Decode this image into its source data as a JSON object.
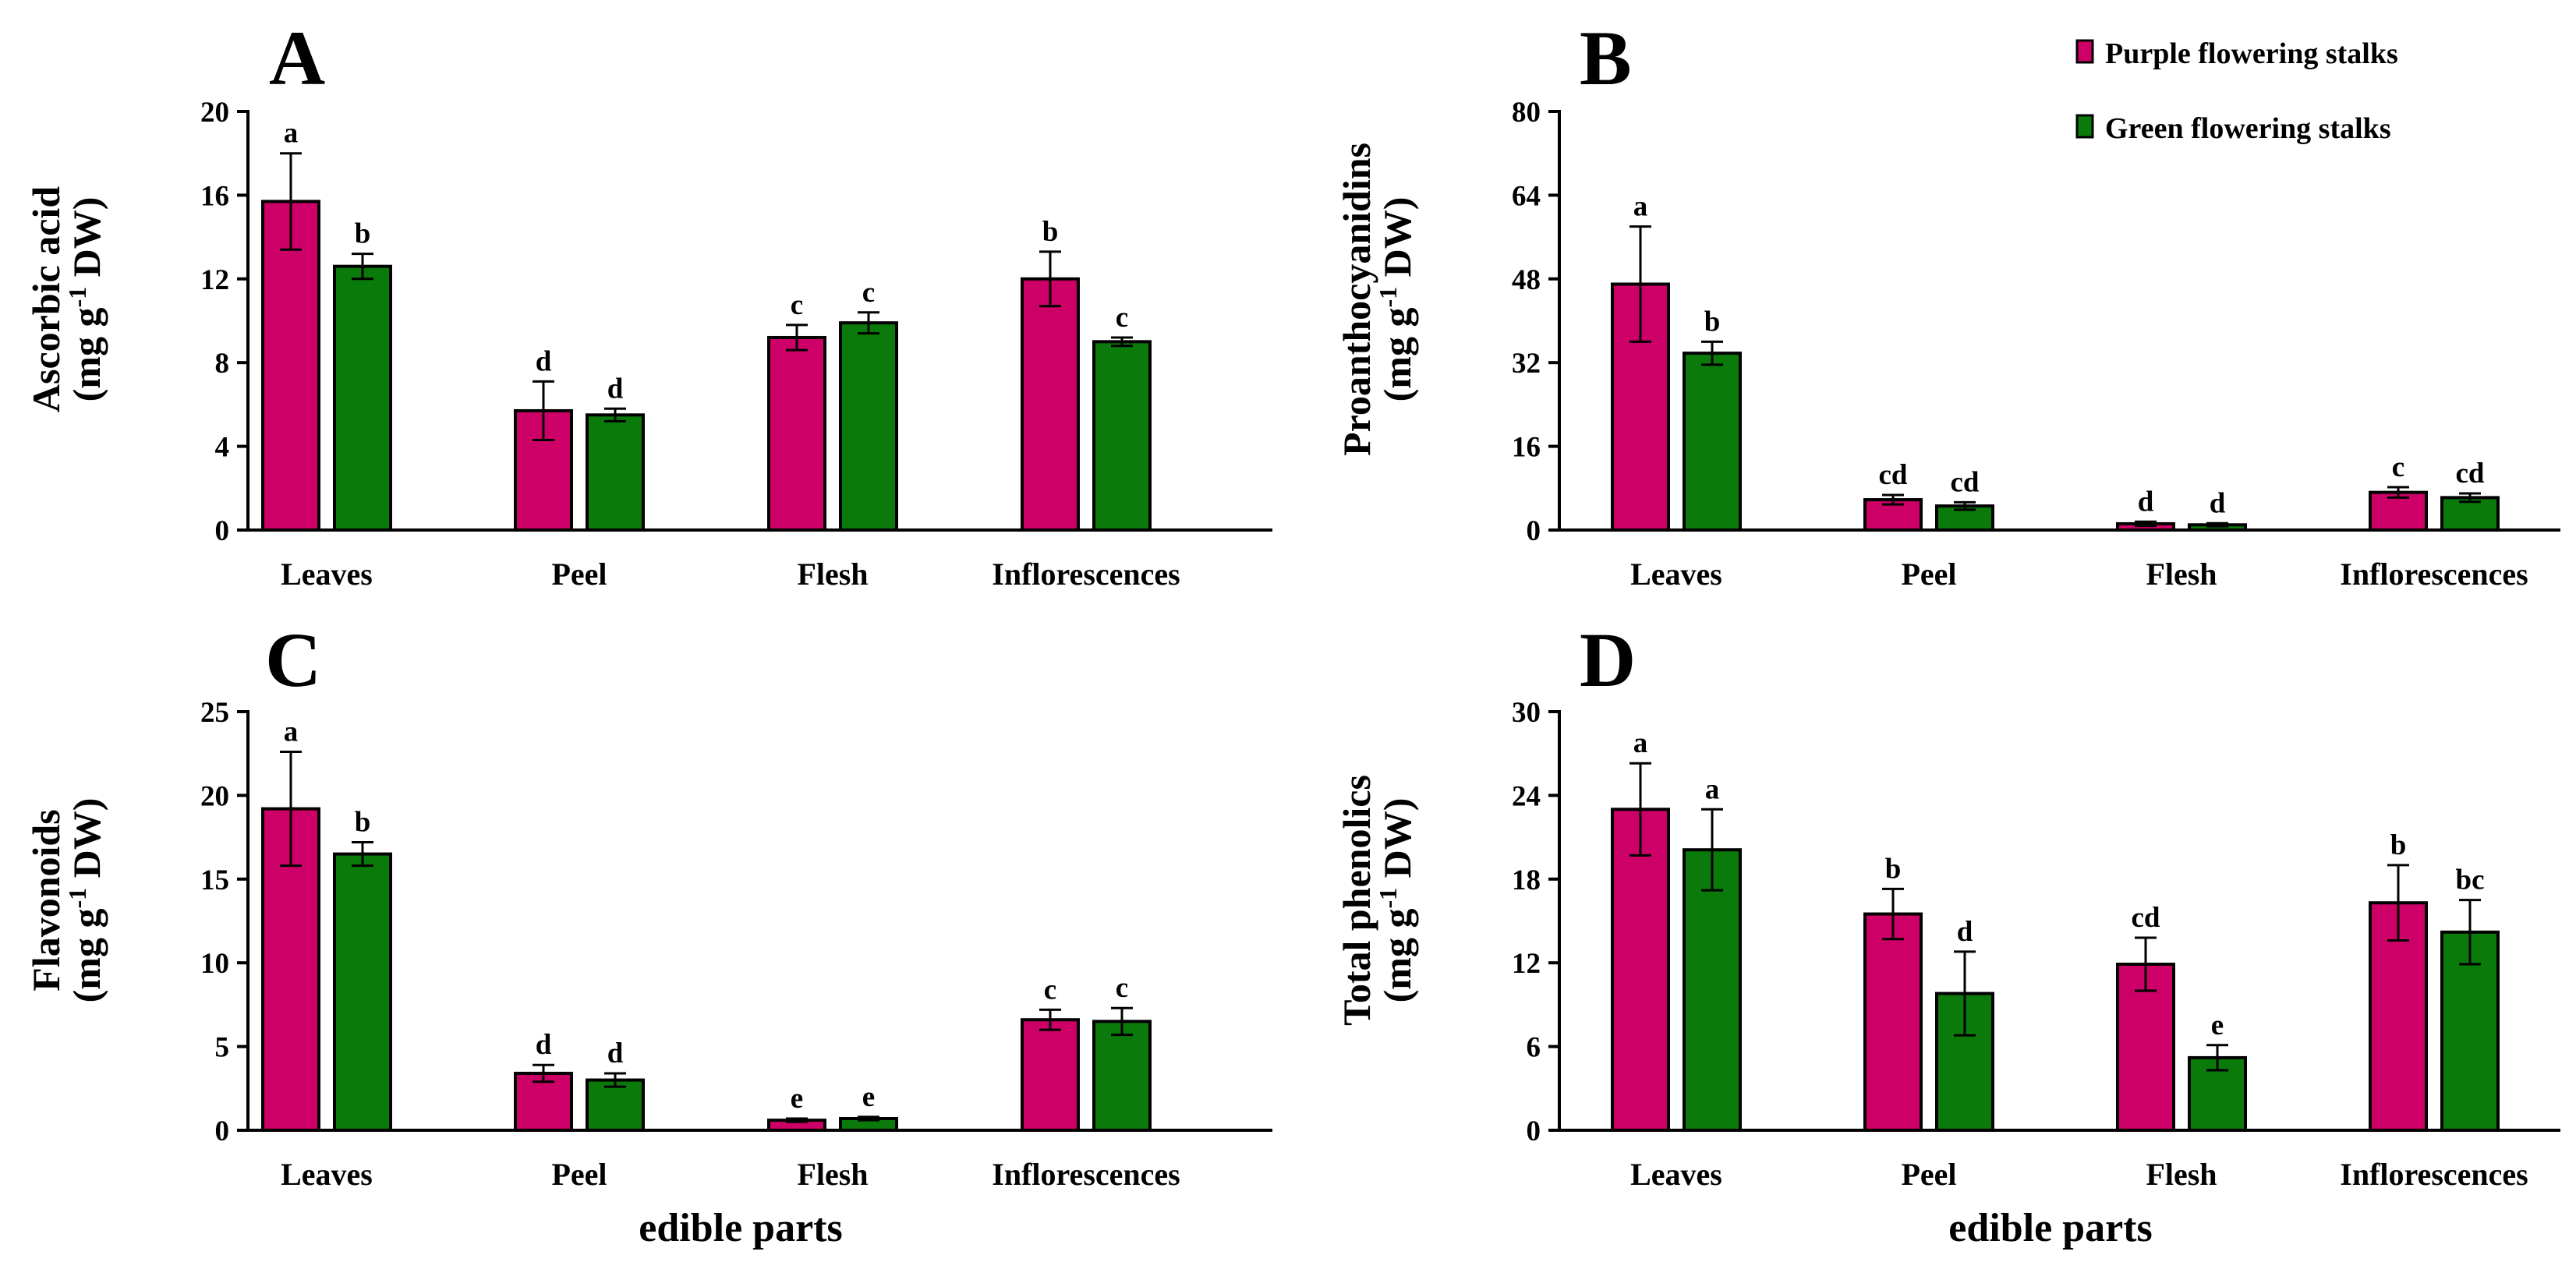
{
  "colors": {
    "purple": "#cc0066",
    "green": "#0a7a0a",
    "axis": "#000000"
  },
  "legend": [
    {
      "label": "Purple flowering stalks",
      "color": "#cc0066"
    },
    {
      "label": "Green flowering stalks",
      "color": "#0a7a0a"
    }
  ],
  "x_axis_title": "edible parts",
  "chart_data": [
    {
      "type": "bar",
      "panel": "A",
      "ylabel_line1": "Ascorbic  acid",
      "ylabel_line2_pre": "(mg g",
      "ylabel_sup": "-1",
      "ylabel_line2_post": " DW)",
      "categories": [
        "Leaves",
        "Peel",
        "Flesh",
        "Inflorescences"
      ],
      "ylim": [
        0,
        20
      ],
      "ticks": [
        0,
        4,
        8,
        12,
        16,
        20
      ],
      "tick_labels": [
        "0",
        "4",
        "8",
        "12",
        "16",
        "20"
      ],
      "series": [
        {
          "name": "Purple flowering stalks",
          "values": [
            15.7,
            5.7,
            9.2,
            12.0
          ],
          "errors": [
            2.3,
            1.4,
            0.6,
            1.3
          ],
          "letters": [
            "a",
            "d",
            "c",
            "b"
          ]
        },
        {
          "name": "Green flowering stalks",
          "values": [
            12.6,
            5.5,
            9.9,
            9.0
          ],
          "errors": [
            0.6,
            0.3,
            0.5,
            0.2
          ],
          "letters": [
            "b",
            "d",
            "c",
            "c"
          ]
        }
      ]
    },
    {
      "type": "bar",
      "panel": "B",
      "ylabel_line1": "Proanthocyanidins",
      "ylabel_line2_pre": "(mg g",
      "ylabel_sup": "-1",
      "ylabel_line2_post": " DW)",
      "categories": [
        "Leaves",
        "Peel",
        "Flesh",
        "Inflorescences"
      ],
      "ylim": [
        0,
        80
      ],
      "ticks": [
        0,
        16,
        32,
        48,
        64,
        80
      ],
      "tick_labels": [
        "0",
        "16",
        "32",
        "48",
        "64",
        "80"
      ],
      "series": [
        {
          "name": "Purple flowering stalks",
          "values": [
            47.0,
            5.8,
            1.2,
            7.2
          ],
          "errors": [
            11.0,
            0.9,
            0.4,
            1.0
          ],
          "letters": [
            "a",
            "cd",
            "d",
            "c"
          ]
        },
        {
          "name": "Green flowering stalks",
          "values": [
            33.8,
            4.6,
            1.0,
            6.2
          ],
          "errors": [
            2.2,
            0.7,
            0.3,
            0.8
          ],
          "letters": [
            "b",
            "cd",
            "d",
            "cd"
          ]
        }
      ]
    },
    {
      "type": "bar",
      "panel": "C",
      "ylabel_line1": "Flavonoids",
      "ylabel_line2_pre": "(mg g",
      "ylabel_sup": "-1",
      "ylabel_line2_post": " DW)",
      "categories": [
        "Leaves",
        "Peel",
        "Flesh",
        "Inflorescences"
      ],
      "ylim": [
        0,
        25
      ],
      "ticks": [
        0,
        5,
        10,
        15,
        20,
        25
      ],
      "tick_labels": [
        "0",
        "5",
        "10",
        "15",
        "20",
        "25"
      ],
      "series": [
        {
          "name": "Purple flowering stalks",
          "values": [
            19.2,
            3.4,
            0.6,
            6.6
          ],
          "errors": [
            3.4,
            0.5,
            0.1,
            0.6
          ],
          "letters": [
            "a",
            "d",
            "e",
            "c"
          ]
        },
        {
          "name": "Green flowering stalks",
          "values": [
            16.5,
            3.0,
            0.7,
            6.5
          ],
          "errors": [
            0.7,
            0.4,
            0.1,
            0.8
          ],
          "letters": [
            "b",
            "d",
            "e",
            "c"
          ]
        }
      ]
    },
    {
      "type": "bar",
      "panel": "D",
      "ylabel_line1": "Total  phenolics",
      "ylabel_line2_pre": "(mg g",
      "ylabel_sup": "-1",
      "ylabel_line2_post": " DW)",
      "categories": [
        "Leaves",
        "Peel",
        "Flesh",
        "Inflorescences"
      ],
      "ylim": [
        0,
        30
      ],
      "ticks": [
        0,
        6,
        12,
        18,
        24,
        30
      ],
      "tick_labels": [
        "0",
        "6",
        "12",
        "18",
        "24",
        "30"
      ],
      "series": [
        {
          "name": "Purple flowering stalks",
          "values": [
            23.0,
            15.5,
            11.9,
            16.3
          ],
          "errors": [
            3.3,
            1.8,
            1.9,
            2.7
          ],
          "letters": [
            "a",
            "b",
            "cd",
            "b"
          ]
        },
        {
          "name": "Green flowering stalks",
          "values": [
            20.1,
            9.8,
            5.2,
            14.2
          ],
          "errors": [
            2.9,
            3.0,
            0.9,
            2.3
          ],
          "letters": [
            "a",
            "d",
            "e",
            "bc"
          ]
        }
      ]
    }
  ]
}
